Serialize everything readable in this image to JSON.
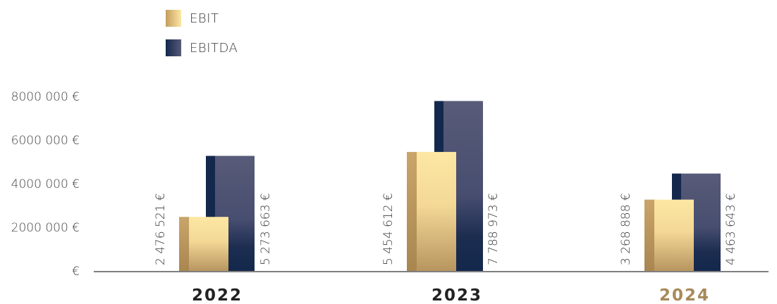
{
  "legend": [
    {
      "name": "EBIT"
    },
    {
      "name": "EBITDA"
    }
  ],
  "colors": {
    "ebit_light": "#fde7a3",
    "ebit_dark": "#b89560",
    "ebitda_light": "#565a78",
    "ebitda_dark": "#13284c",
    "highlight_year": "#a8895a",
    "text": "#3a3a3a"
  },
  "chart_data": {
    "type": "bar",
    "categories": [
      "2022",
      "2023",
      "2024"
    ],
    "highlight_category": "2024",
    "series": [
      {
        "name": "EBIT",
        "values": [
          2476521,
          5454612,
          3268888
        ],
        "labels": [
          "2 476 521 €",
          "5 454 612 €",
          "3 268 888 €"
        ]
      },
      {
        "name": "EBITDA",
        "values": [
          5273663,
          7788973,
          4463643
        ],
        "labels": [
          "5 273 663 €",
          "7 788 973 €",
          "4 463 643 €"
        ]
      }
    ],
    "y_ticks": [
      0,
      2000000,
      4000000,
      6000000,
      8000000
    ],
    "y_tick_labels": [
      "€",
      "2000 000 €",
      "4000 000 €",
      "6000 000 €",
      "8000 000 €"
    ],
    "ylim": [
      0,
      8000000
    ],
    "grid": false,
    "legend_position": "top-left"
  }
}
